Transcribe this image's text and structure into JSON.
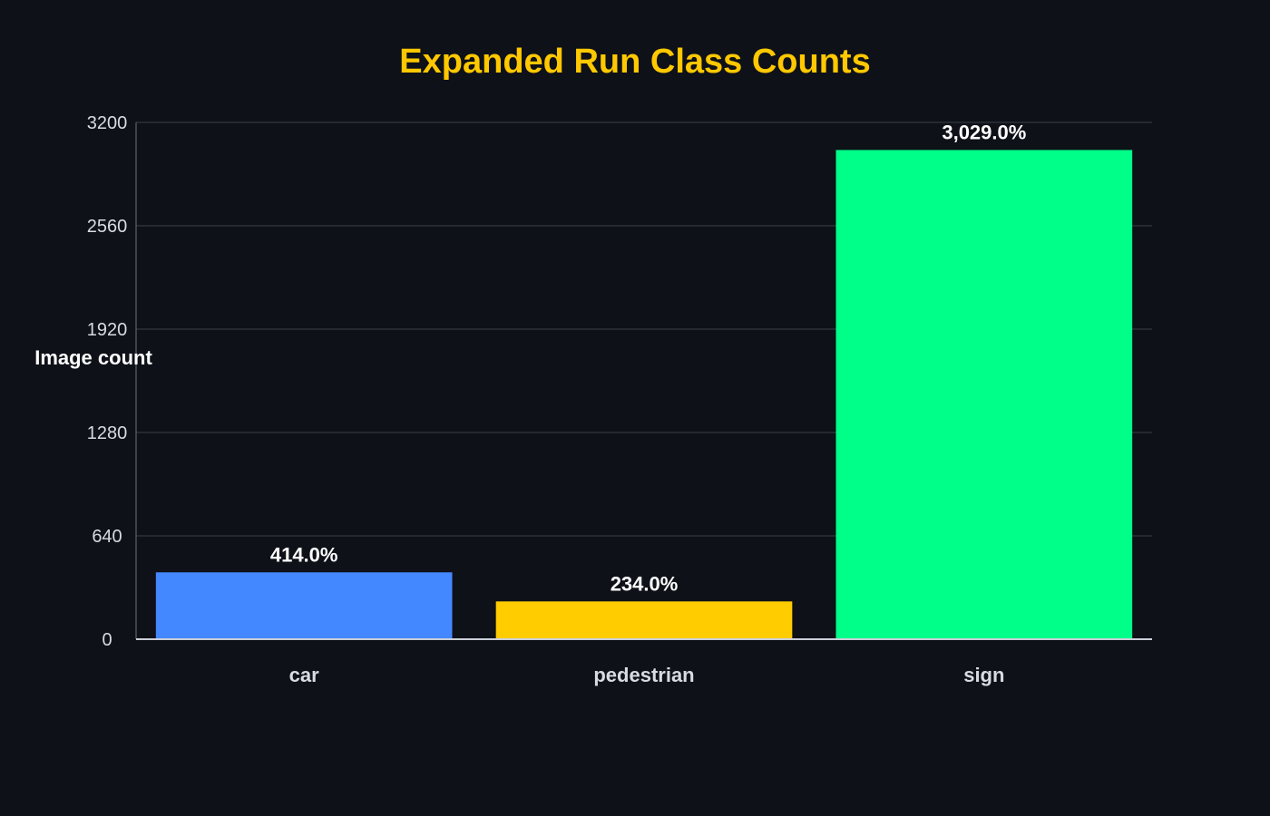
{
  "colors": {
    "background": "#0e1118",
    "title": "#ffc800",
    "grid": "#3a3f4a",
    "text": "#d7dbe2"
  },
  "chart_data": {
    "type": "bar",
    "title": "Expanded Run Class Counts",
    "xlabel": "",
    "ylabel": "Image count",
    "categories": [
      "car",
      "pedestrian",
      "sign"
    ],
    "values": [
      414,
      234,
      3029
    ],
    "data_labels": [
      "414.0%",
      "234.0%",
      "3,029.0%"
    ],
    "bar_colors": [
      "#4488ff",
      "#ffcc00",
      "#00ff88"
    ],
    "ylim": [
      0,
      3200
    ],
    "yticks": [
      0,
      640,
      1280,
      1920,
      2560,
      3200
    ],
    "ytick_labels": [
      "0",
      "640",
      "1280",
      "1920",
      "2560",
      "3200"
    ],
    "grid": true,
    "legend": "none"
  }
}
